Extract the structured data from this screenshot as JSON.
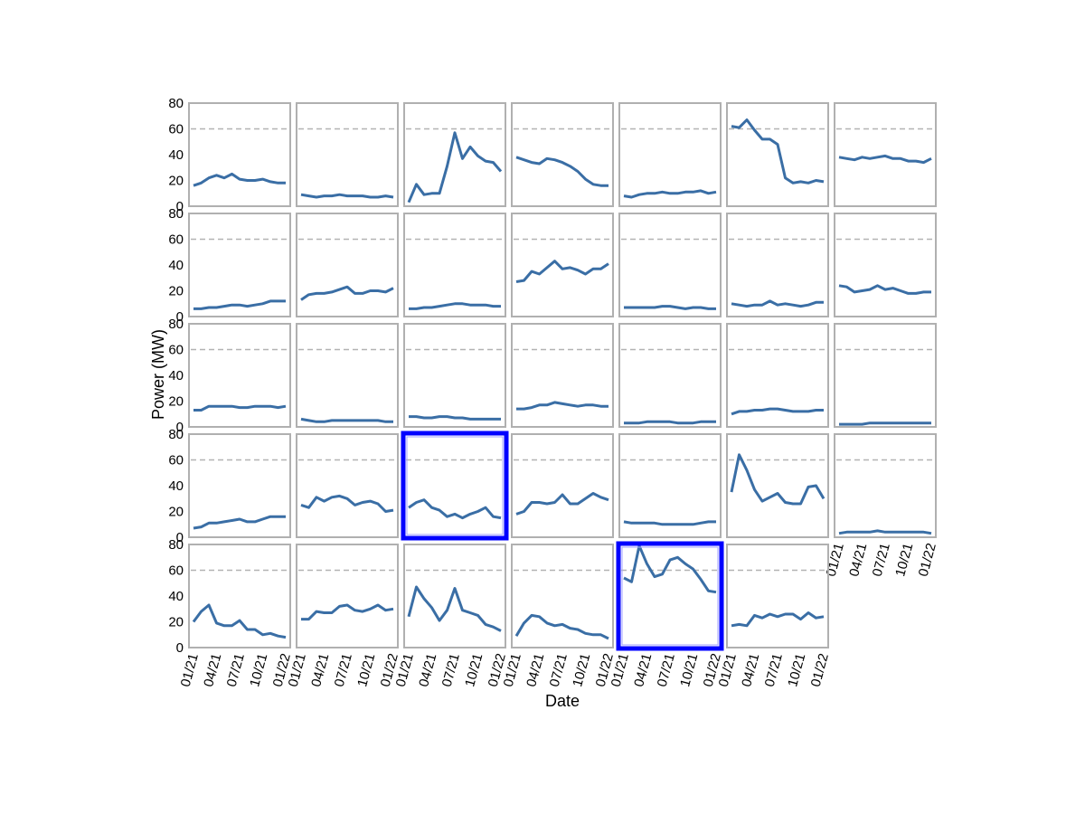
{
  "chart_data": {
    "type": "line",
    "layout": "small-multiples grid, 5 rows x 7 columns, shared axes",
    "xlabel": "Date",
    "ylabel": "Power (MW)",
    "x": [
      "2021-01",
      "2021-02",
      "2021-03",
      "2021-04",
      "2021-05",
      "2021-06",
      "2021-07",
      "2021-08",
      "2021-09",
      "2021-10",
      "2021-11",
      "2021-12",
      "2022-01"
    ],
    "x_tick_labels": [
      "01/21",
      "04/21",
      "07/21",
      "10/21",
      "01/22"
    ],
    "ylim": [
      0,
      80
    ],
    "y_ticks": [
      "0",
      "20",
      "40",
      "60",
      "80"
    ],
    "reference_line": {
      "y": 60,
      "style": "dashed",
      "color": "#b3b3b3"
    },
    "line_color": "#3a6ea5",
    "frame_color": "#b0b0b0",
    "highlight_color": "#0000ff",
    "panels": [
      {
        "values": [
          16,
          18,
          22,
          24,
          22,
          25,
          21,
          20,
          20,
          21,
          19,
          18,
          18
        ]
      },
      {
        "values": [
          9,
          8,
          7,
          8,
          8,
          9,
          8,
          8,
          8,
          7,
          7,
          8,
          7
        ]
      },
      {
        "values": [
          3,
          17,
          9,
          10,
          10,
          31,
          57,
          37,
          46,
          39,
          35,
          34,
          27
        ]
      },
      {
        "values": [
          38,
          36,
          34,
          33,
          37,
          36,
          34,
          31,
          27,
          21,
          17,
          16,
          16
        ]
      },
      {
        "values": [
          8,
          7,
          9,
          10,
          10,
          11,
          10,
          10,
          11,
          11,
          12,
          10,
          11
        ]
      },
      {
        "values": [
          62,
          61,
          67,
          59,
          52,
          52,
          48,
          22,
          18,
          19,
          18,
          20,
          19
        ]
      },
      {
        "values": [
          38,
          37,
          36,
          38,
          37,
          38,
          39,
          37,
          37,
          35,
          35,
          34,
          37
        ]
      },
      {
        "values": [
          6,
          6,
          7,
          7,
          8,
          9,
          9,
          8,
          9,
          10,
          12,
          12,
          12
        ]
      },
      {
        "values": [
          13,
          17,
          18,
          18,
          19,
          21,
          23,
          18,
          18,
          20,
          20,
          19,
          22
        ]
      },
      {
        "values": [
          6,
          6,
          7,
          7,
          8,
          9,
          10,
          10,
          9,
          9,
          9,
          8,
          8
        ]
      },
      {
        "values": [
          27,
          28,
          35,
          33,
          38,
          43,
          37,
          38,
          36,
          33,
          37,
          37,
          41
        ]
      },
      {
        "values": [
          7,
          7,
          7,
          7,
          7,
          8,
          8,
          7,
          6,
          7,
          7,
          6,
          6
        ]
      },
      {
        "values": [
          10,
          9,
          8,
          9,
          9,
          12,
          9,
          10,
          9,
          8,
          9,
          11,
          11
        ]
      },
      {
        "values": [
          24,
          23,
          19,
          20,
          21,
          24,
          21,
          22,
          20,
          18,
          18,
          19,
          19
        ]
      },
      {
        "values": [
          13,
          13,
          16,
          16,
          16,
          16,
          15,
          15,
          16,
          16,
          16,
          15,
          16
        ]
      },
      {
        "values": [
          6,
          5,
          4,
          4,
          5,
          5,
          5,
          5,
          5,
          5,
          5,
          4,
          4
        ]
      },
      {
        "values": [
          8,
          8,
          7,
          7,
          8,
          8,
          7,
          7,
          6,
          6,
          6,
          6,
          6
        ]
      },
      {
        "values": [
          14,
          14,
          15,
          17,
          17,
          19,
          18,
          17,
          16,
          17,
          17,
          16,
          16
        ]
      },
      {
        "values": [
          3,
          3,
          3,
          4,
          4,
          4,
          4,
          3,
          3,
          3,
          4,
          4,
          4
        ]
      },
      {
        "values": [
          10,
          12,
          12,
          13,
          13,
          14,
          14,
          13,
          12,
          12,
          12,
          13,
          13
        ]
      },
      {
        "values": [
          2,
          2,
          2,
          2,
          3,
          3,
          3,
          3,
          3,
          3,
          3,
          3,
          3
        ]
      },
      {
        "values": [
          7,
          8,
          11,
          11,
          12,
          13,
          14,
          12,
          12,
          14,
          16,
          16,
          16
        ]
      },
      {
        "values": [
          25,
          23,
          31,
          28,
          31,
          32,
          30,
          25,
          27,
          28,
          26,
          20,
          21
        ]
      },
      {
        "values": [
          23,
          27,
          29,
          23,
          21,
          16,
          18,
          15,
          18,
          20,
          23,
          16,
          15
        ],
        "highlighted": true
      },
      {
        "values": [
          18,
          20,
          27,
          27,
          26,
          27,
          33,
          26,
          26,
          30,
          34,
          31,
          29
        ]
      },
      {
        "values": [
          12,
          11,
          11,
          11,
          11,
          10,
          10,
          10,
          10,
          10,
          11,
          12,
          12
        ]
      },
      {
        "values": [
          35,
          64,
          52,
          37,
          28,
          31,
          34,
          27,
          26,
          26,
          39,
          40,
          30
        ]
      },
      {
        "values": [
          3,
          4,
          4,
          4,
          4,
          5,
          4,
          4,
          4,
          4,
          4,
          4,
          3
        ]
      },
      {
        "values": [
          20,
          28,
          33,
          19,
          17,
          17,
          21,
          14,
          14,
          10,
          11,
          9,
          8
        ]
      },
      {
        "values": [
          22,
          22,
          28,
          27,
          27,
          32,
          33,
          29,
          28,
          30,
          33,
          29,
          30
        ]
      },
      {
        "values": [
          24,
          47,
          38,
          31,
          21,
          29,
          46,
          29,
          27,
          25,
          18,
          16,
          13
        ]
      },
      {
        "values": [
          9,
          19,
          25,
          24,
          19,
          17,
          18,
          15,
          14,
          11,
          10,
          10,
          7
        ]
      },
      {
        "values": [
          54,
          51,
          79,
          65,
          55,
          57,
          68,
          70,
          65,
          61,
          53,
          44,
          43
        ],
        "highlighted": true
      },
      {
        "values": [
          17,
          18,
          17,
          25,
          23,
          26,
          24,
          26,
          26,
          22,
          27,
          23,
          24
        ]
      }
    ]
  }
}
